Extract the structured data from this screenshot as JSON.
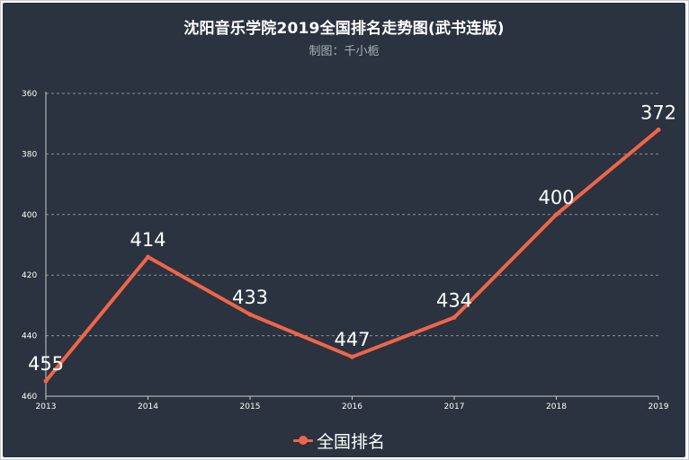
{
  "chart_data": {
    "type": "line",
    "title": "沈阳音乐学院2019全国排名走势图(武书连版)",
    "subtitle": "制图：千小栀",
    "categories": [
      "2013",
      "2014",
      "2015",
      "2016",
      "2017",
      "2018",
      "2019"
    ],
    "series": [
      {
        "name": "全国排名",
        "values": [
          455,
          414,
          433,
          447,
          434,
          400,
          372
        ]
      }
    ],
    "y_ticks": [
      360,
      380,
      400,
      420,
      440,
      460
    ],
    "ylim": [
      360,
      460
    ],
    "y_inverted": true,
    "grid": true,
    "legend_position": "bottom-center",
    "colors": {
      "background": "#2a333f",
      "series": "#f0654a",
      "grid": "#8a9099",
      "axis": "#c8ccd1"
    }
  }
}
